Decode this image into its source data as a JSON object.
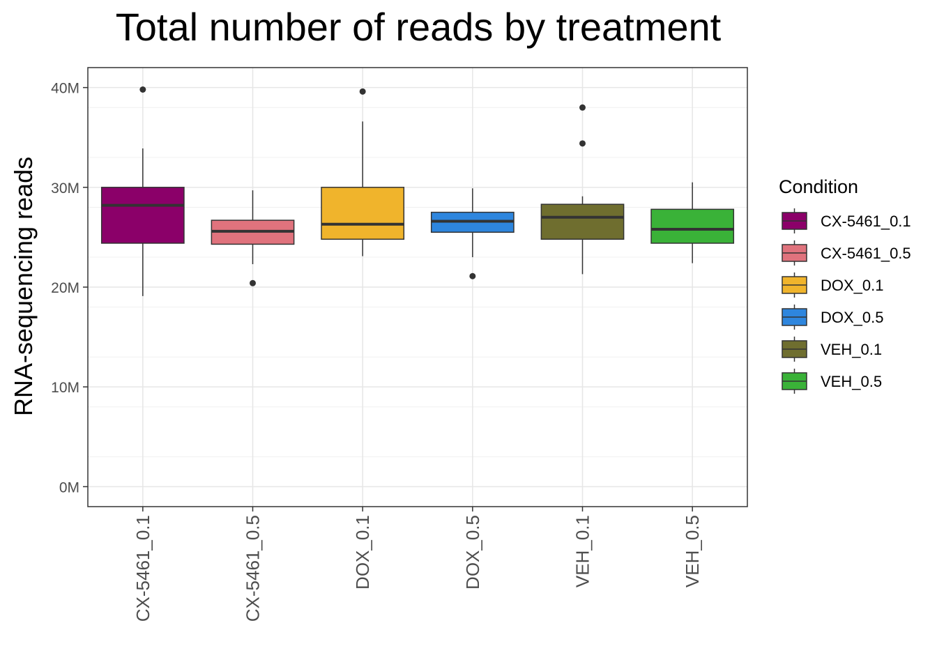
{
  "chart_data": {
    "type": "box",
    "title": "Total number of reads by treatment",
    "xlabel": "",
    "ylabel": "RNA-sequencing reads",
    "ylim": [
      -2,
      42
    ],
    "y_unit": "M",
    "yticks": [
      {
        "value": 0,
        "label": "0M"
      },
      {
        "value": 10,
        "label": "10M"
      },
      {
        "value": 20,
        "label": "20M"
      },
      {
        "value": 30,
        "label": "30M"
      },
      {
        "value": 40,
        "label": "40M"
      }
    ],
    "grid": true,
    "legend": {
      "title": "Condition",
      "position": "right"
    },
    "categories": [
      "CX-5461_0.1",
      "CX-5461_0.5",
      "DOX_0.1",
      "DOX_0.5",
      "VEH_0.1",
      "VEH_0.5"
    ],
    "series": [
      {
        "name": "CX-5461_0.1",
        "color": "#8B0069",
        "whisker_low": 19.1,
        "q1": 24.4,
        "median": 28.2,
        "q3": 30.0,
        "whisker_high": 33.9,
        "outliers": [
          39.8
        ]
      },
      {
        "name": "CX-5461_0.5",
        "color": "#E0737D",
        "whisker_low": 22.3,
        "q1": 24.3,
        "median": 25.6,
        "q3": 26.7,
        "whisker_high": 29.7,
        "outliers": [
          20.4
        ]
      },
      {
        "name": "DOX_0.1",
        "color": "#F0B42C",
        "whisker_low": 23.1,
        "q1": 24.8,
        "median": 26.3,
        "q3": 30.0,
        "whisker_high": 36.6,
        "outliers": [
          39.6
        ]
      },
      {
        "name": "DOX_0.5",
        "color": "#2E86DE",
        "whisker_low": 23.0,
        "q1": 25.5,
        "median": 26.6,
        "q3": 27.5,
        "whisker_high": 29.9,
        "outliers": [
          21.1
        ]
      },
      {
        "name": "VEH_0.1",
        "color": "#6F6E2F",
        "whisker_low": 21.3,
        "q1": 24.8,
        "median": 27.0,
        "q3": 28.3,
        "whisker_high": 29.1,
        "outliers": [
          34.4,
          38.0
        ]
      },
      {
        "name": "VEH_0.5",
        "color": "#3AB238",
        "whisker_low": 22.4,
        "q1": 24.4,
        "median": 25.8,
        "q3": 27.8,
        "whisker_high": 30.5,
        "outliers": []
      }
    ]
  }
}
